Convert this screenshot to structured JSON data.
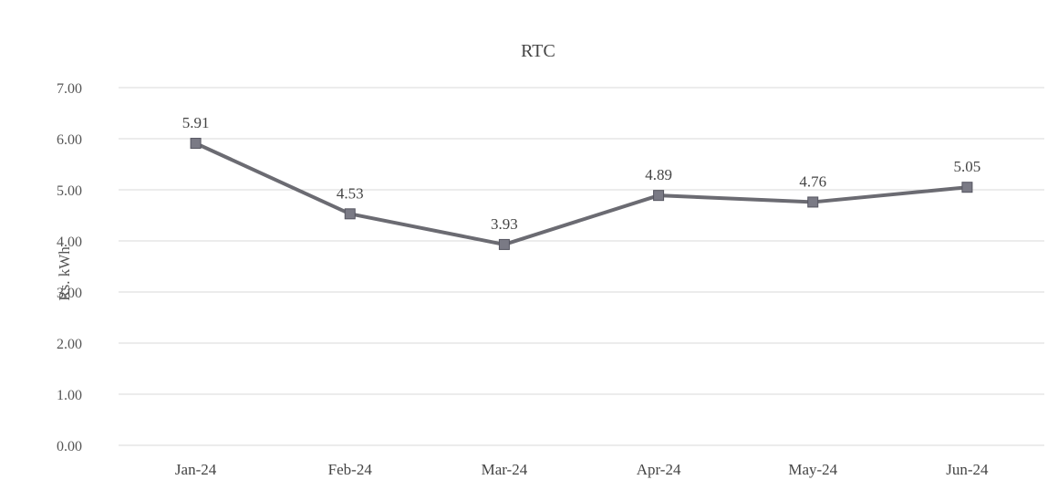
{
  "chart_data": {
    "type": "line",
    "title": "RTC",
    "xlabel": "",
    "ylabel": "Rs. kWh",
    "categories": [
      "Jan-24",
      "Feb-24",
      "Mar-24",
      "Apr-24",
      "May-24",
      "Jun-24"
    ],
    "series": [
      {
        "values": [
          5.91,
          4.53,
          3.93,
          4.89,
          4.76,
          5.05
        ],
        "data_labels": [
          "5.91",
          "4.53",
          "3.93",
          "4.89",
          "4.76",
          "5.05"
        ],
        "color": "#6b6b72",
        "marker_color": "#7a7a85",
        "marker": "square"
      }
    ],
    "ylim": [
      0,
      7
    ],
    "yticks": [
      "0.00",
      "1.00",
      "2.00",
      "3.00",
      "4.00",
      "5.00",
      "6.00",
      "7.00"
    ],
    "grid": true,
    "legend": "none",
    "gridline_color": "#d9d9d9"
  }
}
